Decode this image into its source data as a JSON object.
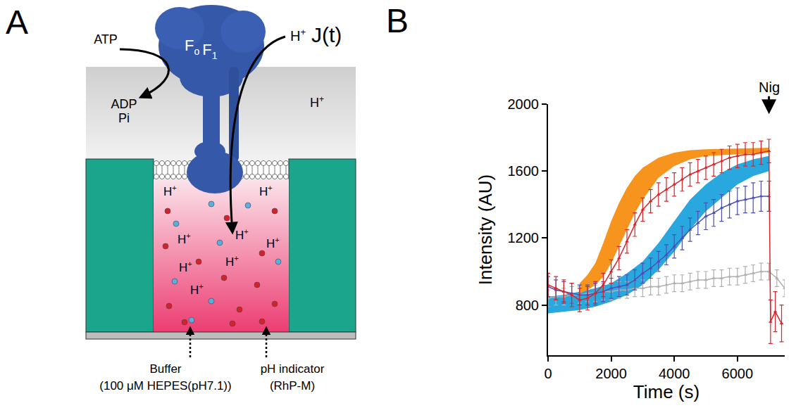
{
  "diagram": {
    "panel": "A",
    "enzyme": [
      {
        "base": "F",
        "sub": "o"
      },
      {
        "base": "F",
        "sub": "1"
      }
    ],
    "substrate": "ATP",
    "products": [
      "ADP",
      "Pi"
    ],
    "proton": {
      "base": "H",
      "sup": "+"
    },
    "flux": "J(t)",
    "labels": [
      {
        "lines": [
          "Buffer",
          "(100 μM HEPES(pH7.1))"
        ]
      },
      {
        "lines": [
          "pH indicator",
          "(RhP-M)"
        ]
      }
    ]
  },
  "chart_data": {
    "type": "line",
    "panel": "B",
    "x_label": "Time (s)",
    "y_label": "Intensity (AU)",
    "xlim": [
      0,
      7500
    ],
    "xticks": [
      0,
      2000,
      4000,
      6000
    ],
    "ylim": [
      500,
      2000
    ],
    "yticks": [
      800,
      1200,
      1600,
      2000
    ],
    "grid": false,
    "annotations": [
      {
        "text": "Nig",
        "x": 7000,
        "y": 1940
      }
    ],
    "series": [
      {
        "type": "band",
        "color": "#29a8e0",
        "x": [
          0,
          500,
          1000,
          1500,
          2000,
          2500,
          3000,
          3500,
          4000,
          4500,
          5000,
          5500,
          6000,
          6500,
          7000
        ],
        "lower": [
          750,
          760,
          770,
          790,
          820,
          860,
          920,
          1010,
          1120,
          1250,
          1360,
          1440,
          1520,
          1570,
          1600
        ],
        "upper": [
          850,
          860,
          880,
          900,
          930,
          990,
          1060,
          1170,
          1300,
          1430,
          1520,
          1590,
          1640,
          1670,
          1690
        ]
      },
      {
        "type": "band",
        "color": "#f7941d",
        "x": [
          1000,
          1250,
          1500,
          1750,
          2000,
          2250,
          2500,
          2750,
          3000,
          3500,
          4000,
          4500,
          5000,
          6000,
          7000
        ],
        "lower": [
          870,
          890,
          920,
          970,
          1050,
          1150,
          1250,
          1350,
          1430,
          1560,
          1630,
          1670,
          1690,
          1700,
          1710
        ],
        "upper": [
          930,
          980,
          1050,
          1170,
          1300,
          1410,
          1500,
          1570,
          1620,
          1680,
          1710,
          1725,
          1730,
          1735,
          1740
        ]
      },
      {
        "type": "line",
        "color": "#b0b0b0",
        "marker": "triangle-up",
        "x": [
          0,
          250,
          500,
          750,
          1000,
          1250,
          1500,
          1750,
          2000,
          2250,
          2500,
          2750,
          3000,
          3250,
          3500,
          3750,
          4000,
          4250,
          4500,
          4750,
          5000,
          5250,
          5500,
          5750,
          6000,
          6250,
          6500,
          6750,
          7000,
          7250,
          7500
        ],
        "values": [
          840,
          850,
          850,
          860,
          860,
          870,
          870,
          880,
          880,
          890,
          890,
          900,
          900,
          910,
          910,
          920,
          930,
          930,
          940,
          950,
          950,
          960,
          960,
          970,
          970,
          980,
          990,
          1000,
          1000,
          960,
          900
        ],
        "error": [
          50,
          50,
          50,
          50,
          50,
          50,
          50,
          50,
          50,
          50,
          50,
          50,
          50,
          50,
          50,
          50,
          50,
          50,
          50,
          50,
          50,
          50,
          50,
          50,
          50,
          50,
          50,
          50,
          50,
          50,
          50
        ]
      },
      {
        "type": "line",
        "color": "#4b4fb5",
        "marker": "triangle-up",
        "x": [
          0,
          250,
          500,
          750,
          1000,
          1250,
          1500,
          1750,
          2000,
          2250,
          2500,
          2750,
          3000,
          3250,
          3500,
          3750,
          4000,
          4250,
          4500,
          4750,
          5000,
          5250,
          5500,
          5750,
          6000,
          6250,
          6500,
          6750,
          7000
        ],
        "values": [
          910,
          890,
          880,
          870,
          860,
          860,
          870,
          880,
          900,
          910,
          920,
          950,
          990,
          1020,
          1060,
          1100,
          1150,
          1200,
          1250,
          1290,
          1330,
          1350,
          1380,
          1400,
          1420,
          1430,
          1440,
          1450,
          1450
        ],
        "error": [
          60,
          60,
          60,
          60,
          60,
          60,
          60,
          60,
          60,
          60,
          60,
          60,
          60,
          60,
          60,
          60,
          70,
          70,
          70,
          70,
          80,
          80,
          80,
          80,
          80,
          80,
          90,
          90,
          90
        ]
      },
      {
        "type": "line",
        "color": "#d7262b",
        "marker": "triangle-up",
        "x": [
          0,
          250,
          500,
          750,
          1000,
          1250,
          1500,
          1750,
          2000,
          2250,
          2500,
          2750,
          3000,
          3250,
          3500,
          3750,
          4000,
          4250,
          4500,
          4750,
          5000,
          5250,
          5500,
          5750,
          6000,
          6250,
          6500,
          6750,
          7000,
          7050,
          7200,
          7400
        ],
        "values": [
          920,
          900,
          880,
          860,
          830,
          840,
          870,
          920,
          1000,
          1080,
          1180,
          1280,
          1370,
          1420,
          1460,
          1490,
          1520,
          1550,
          1580,
          1600,
          1620,
          1640,
          1660,
          1680,
          1690,
          1700,
          1700,
          1710,
          1720,
          700,
          760,
          690
        ],
        "error": [
          70,
          70,
          70,
          70,
          70,
          70,
          70,
          70,
          70,
          70,
          70,
          70,
          70,
          70,
          70,
          70,
          70,
          70,
          70,
          70,
          70,
          70,
          70,
          70,
          70,
          70,
          70,
          70,
          70,
          130,
          120,
          110
        ]
      }
    ]
  }
}
